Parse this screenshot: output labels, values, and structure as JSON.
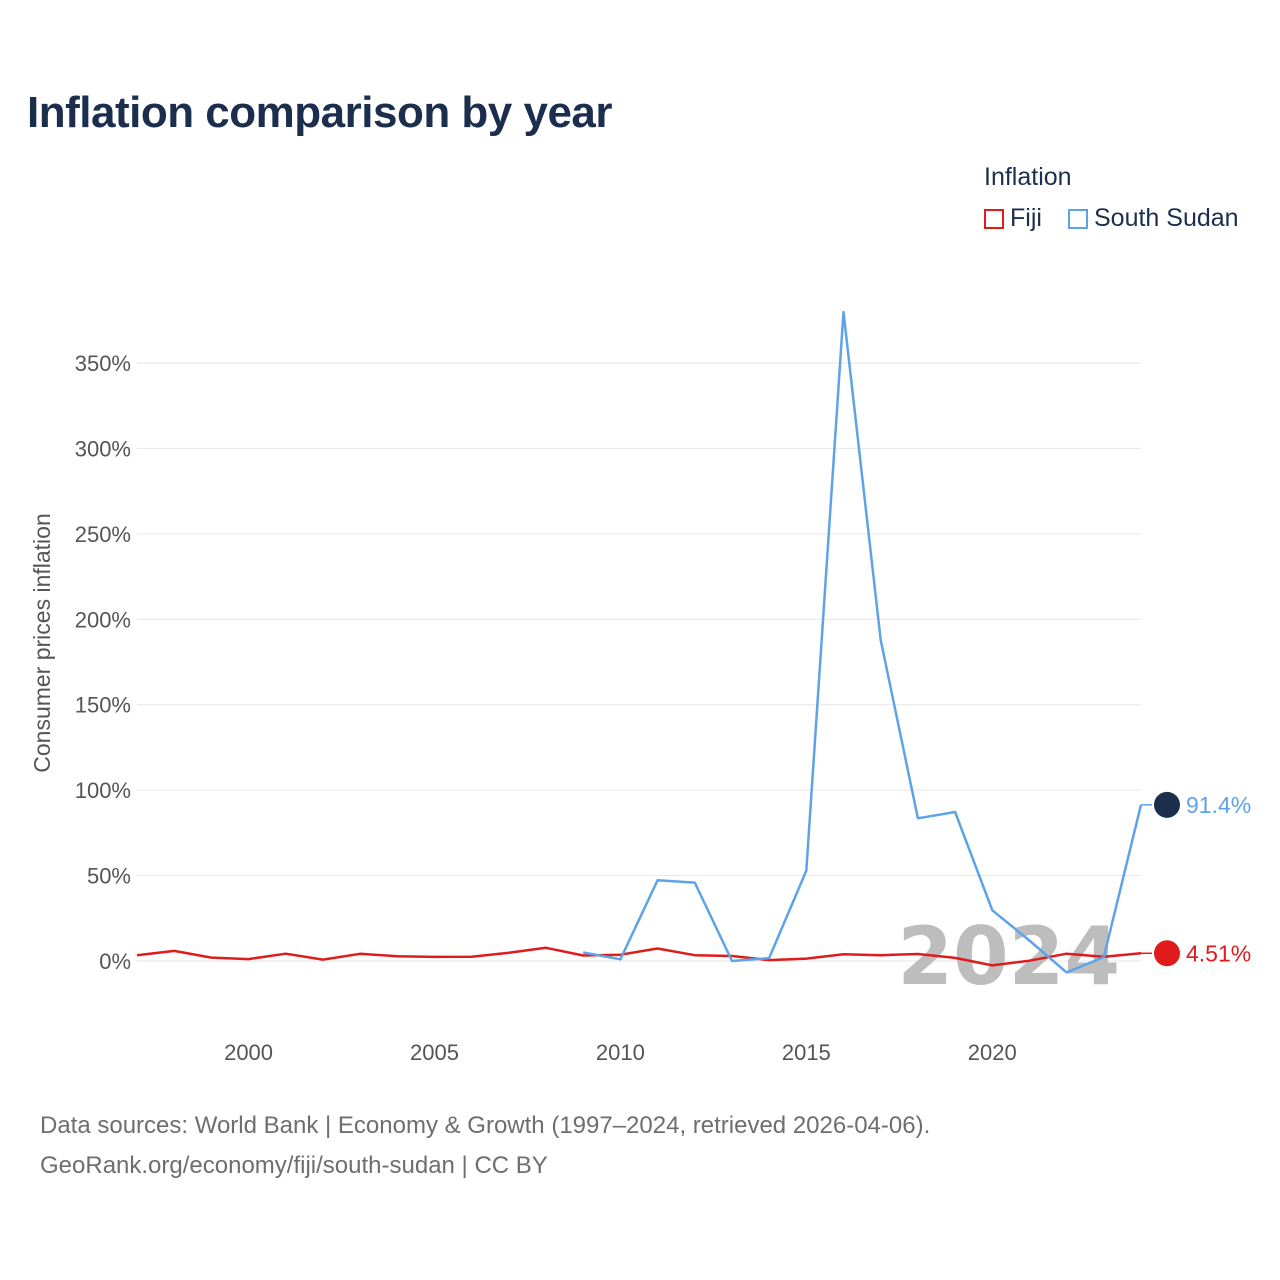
{
  "title": "Inflation comparison by year",
  "legend": {
    "title": "Inflation",
    "items": [
      {
        "label": "Fiji",
        "color": "#e01b1b"
      },
      {
        "label": "South Sudan",
        "color": "#5ea3e8"
      }
    ]
  },
  "footer": {
    "line1": "Data sources: World Bank | Economy & Growth (1997–2024, retrieved 2026-04-06).",
    "line2": "GeoRank.org/economy/fiji/south-sudan | CC BY"
  },
  "chart_data": {
    "type": "line",
    "title": "Inflation comparison by year",
    "xlabel": "",
    "ylabel": "Consumer prices inflation",
    "xlim": [
      1997,
      2024
    ],
    "ylim": [
      -20,
      380
    ],
    "x_ticks": [
      2000,
      2005,
      2010,
      2015,
      2020
    ],
    "x_tick_labels": [
      "2000",
      "2005",
      "2010",
      "2015",
      "2020"
    ],
    "y_ticks": [
      0,
      50,
      100,
      150,
      200,
      250,
      300,
      350
    ],
    "y_tick_labels": [
      "0%",
      "50%",
      "100%",
      "150%",
      "200%",
      "250%",
      "300%",
      "350%"
    ],
    "grid": true,
    "legend_position": "top-right",
    "watermark": "2024",
    "series": [
      {
        "name": "Fiji",
        "color": "#e01b1b",
        "x": [
          1997,
          1998,
          1999,
          2000,
          2001,
          2002,
          2003,
          2004,
          2005,
          2006,
          2007,
          2008,
          2009,
          2010,
          2011,
          2012,
          2013,
          2014,
          2015,
          2016,
          2017,
          2018,
          2019,
          2020,
          2021,
          2022,
          2023,
          2024
        ],
        "values": [
          3.4,
          5.9,
          2.0,
          1.1,
          4.3,
          0.8,
          4.2,
          2.8,
          2.4,
          2.5,
          4.8,
          7.7,
          3.2,
          3.7,
          7.3,
          3.4,
          2.9,
          0.5,
          1.4,
          3.9,
          3.4,
          4.1,
          1.8,
          -2.6,
          0.2,
          4.3,
          2.5,
          4.51
        ],
        "end_label": "4.51%"
      },
      {
        "name": "South Sudan",
        "color": "#5ea3e8",
        "x": [
          2009,
          2010,
          2011,
          2012,
          2013,
          2014,
          2015,
          2016,
          2017,
          2018,
          2019,
          2020,
          2021,
          2022,
          2023,
          2024
        ],
        "values": [
          5.0,
          1.0,
          47.3,
          45.9,
          0.0,
          1.7,
          52.8,
          379.8,
          187.9,
          83.5,
          87.2,
          29.7,
          12.0,
          -6.7,
          2.3,
          91.4
        ],
        "end_label": "91.4%"
      }
    ]
  }
}
